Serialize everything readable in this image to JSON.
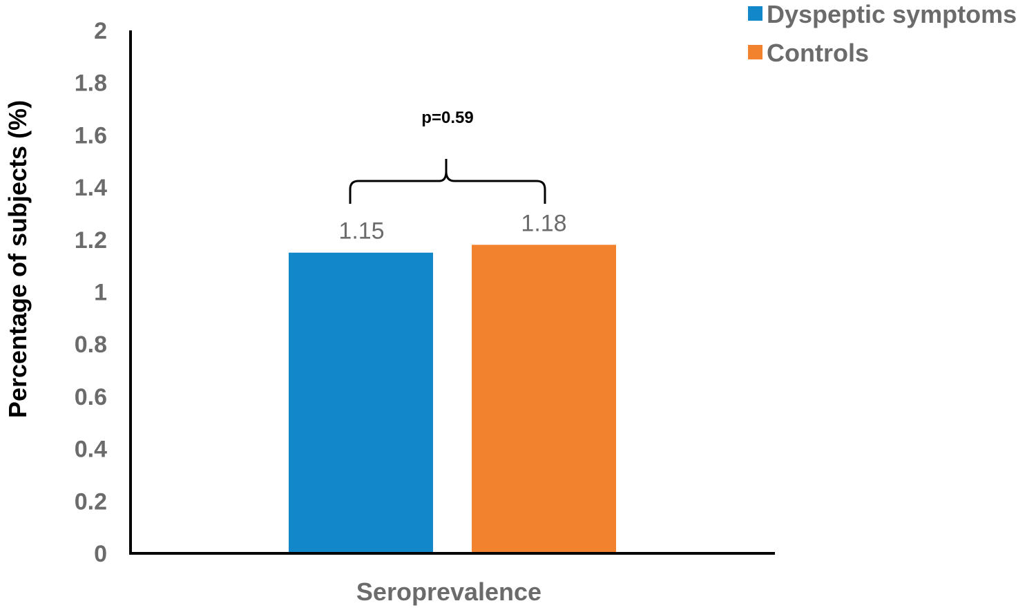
{
  "chart_data": {
    "type": "bar",
    "categories": [
      "Seroprevalence"
    ],
    "series": [
      {
        "name": "Dyspeptic symptoms",
        "values": [
          1.15
        ],
        "color": "#1287C9"
      },
      {
        "name": "Controls",
        "values": [
          1.18
        ],
        "color": "#F2822E"
      }
    ],
    "data_labels": [
      "1.15",
      "1.18"
    ],
    "ylabel": "Percentage of subjects (%)",
    "xlabel": "",
    "ylim": [
      0,
      2
    ],
    "yticks": [
      "0",
      "0.2",
      "0.4",
      "0.6",
      "0.8",
      "1",
      "1.2",
      "1.4",
      "1.6",
      "1.8",
      "2"
    ],
    "annotation": "p=0.59",
    "legend_position": "top-right",
    "grid": false
  }
}
